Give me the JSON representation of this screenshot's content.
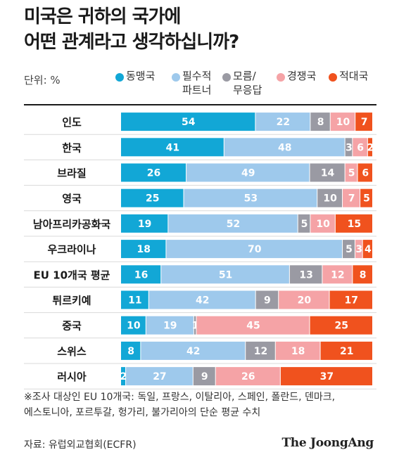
{
  "title": {
    "line1": "미국은 귀하의 국가에",
    "line2": "어떤 관계라고 생각하십니까?"
  },
  "unit_label": "단위: %",
  "legend": [
    {
      "lines": [
        "동맹국"
      ],
      "color": "#12a7d6"
    },
    {
      "lines": [
        "필수적",
        "파트너"
      ],
      "color": "#9ec9ec"
    },
    {
      "lines": [
        "모름/",
        "무응답"
      ],
      "color": "#9a9aa3"
    },
    {
      "lines": [
        "경쟁국"
      ],
      "color": "#f5a3a6"
    },
    {
      "lines": [
        "적대국"
      ],
      "color": "#f0521e"
    }
  ],
  "chart_data": {
    "type": "bar",
    "orientation": "horizontal",
    "stacked": true,
    "unit": "%",
    "categories": [
      "인도",
      "한국",
      "브라질",
      "영국",
      "남아프리카공화국",
      "우크라이나",
      "EU 10개국 평균",
      "튀르키예",
      "중국",
      "스위스",
      "러시아"
    ],
    "series": [
      {
        "name": "동맹국",
        "color": "#12a7d6",
        "values": [
          54,
          41,
          26,
          25,
          19,
          18,
          16,
          11,
          10,
          8,
          2
        ]
      },
      {
        "name": "필수적 파트너",
        "color": "#9ec9ec",
        "values": [
          22,
          48,
          49,
          53,
          52,
          70,
          51,
          42,
          19,
          42,
          27
        ]
      },
      {
        "name": "모름/무응답",
        "color": "#9a9aa3",
        "values": [
          8,
          3,
          14,
          10,
          5,
          5,
          13,
          9,
          1,
          12,
          9
        ]
      },
      {
        "name": "경쟁국",
        "color": "#f5a3a6",
        "values": [
          10,
          6,
          5,
          7,
          10,
          3,
          12,
          20,
          45,
          18,
          26
        ]
      },
      {
        "name": "적대국",
        "color": "#f0521e",
        "values": [
          7,
          2,
          6,
          5,
          15,
          4,
          8,
          17,
          25,
          21,
          37
        ]
      }
    ]
  },
  "footnote": {
    "line1": "※조사 대상인 EU 10개국: 독일, 프랑스, 이탈리아, 스페인, 폴란드, 덴마크,",
    "line2": "에스토니아, 포르투갈, 헝가리, 불가리아의 단순 평균 수치"
  },
  "source": "자료: 유럽외교협회(ECFR)",
  "brand": "The JoongAng"
}
